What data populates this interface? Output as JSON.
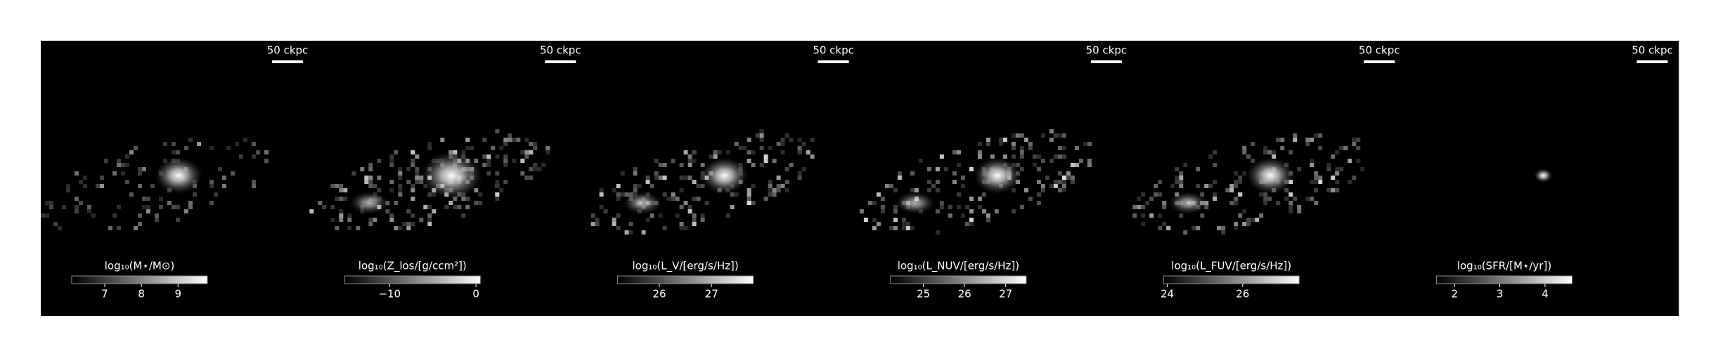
{
  "panels": [
    {
      "scalebar": "50 ckpc",
      "colorbar": {
        "label": "log₁₀(M⋆/M⊙)",
        "clim": [
          6.1,
          9.8
        ],
        "ticks": [
          7,
          8,
          9
        ]
      }
    },
    {
      "scalebar": "50 ckpc",
      "colorbar": {
        "label": "log₁₀(Z_los/[g/ccm²])",
        "clim": [
          -15.2,
          0.5
        ],
        "ticks": [
          {
            "value": -10,
            "label": "−10"
          },
          0
        ]
      }
    },
    {
      "scalebar": "50 ckpc",
      "colorbar": {
        "label": "log₁₀(L_V/[erg/s/Hz])",
        "clim": [
          25.2,
          27.8
        ],
        "ticks": [
          26,
          27
        ]
      }
    },
    {
      "scalebar": "50 ckpc",
      "colorbar": {
        "label": "log₁₀(L_NUV/[erg/s/Hz])",
        "clim": [
          24.2,
          27.5
        ],
        "ticks": [
          25,
          26,
          27
        ]
      }
    },
    {
      "scalebar": "50 ckpc",
      "colorbar": {
        "label": "log₁₀(L_FUV/[erg/s/Hz])",
        "clim": [
          23.9,
          27.5
        ],
        "ticks": [
          24,
          26
        ]
      }
    },
    {
      "scalebar": "50 ckpc",
      "colorbar": {
        "label": "log₁₀(SFR/[M⋆/yr])",
        "clim": [
          1.6,
          4.6
        ],
        "ticks": [
          2,
          3,
          4
        ]
      }
    }
  ]
}
